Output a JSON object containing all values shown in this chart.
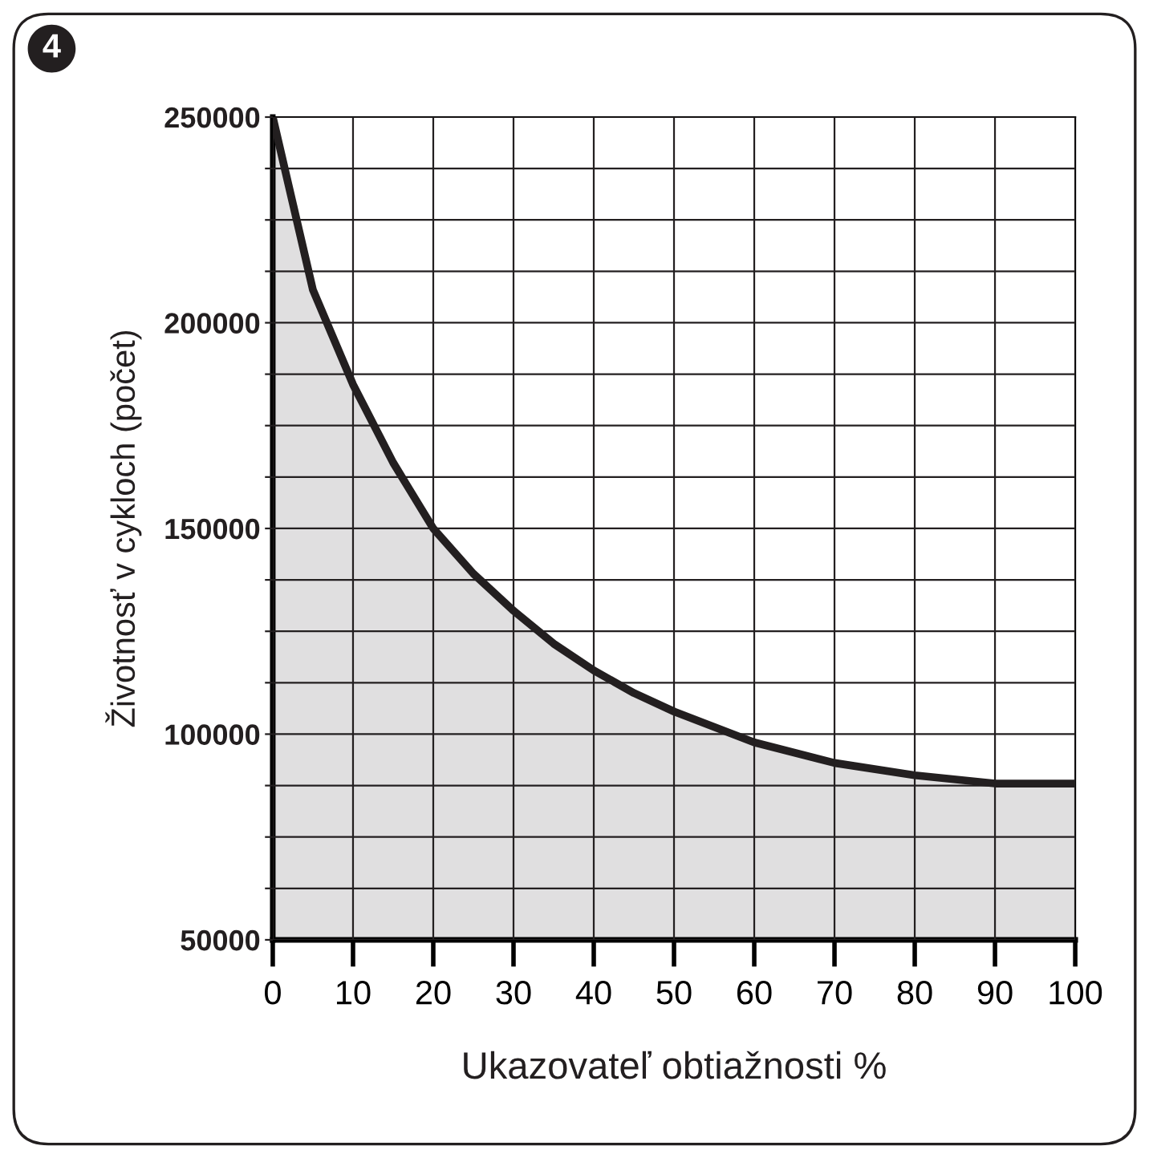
{
  "chart_data": {
    "type": "area",
    "xlabel": "Ukazovateľ obtiažnosti %",
    "ylabel": "Životnosť v cykloch (počet)",
    "annotations": [
      "4"
    ],
    "x": [
      0,
      5,
      10,
      15,
      20,
      25,
      30,
      35,
      40,
      45,
      50,
      60,
      70,
      80,
      90,
      100
    ],
    "series": [
      {
        "color": "#231f20",
        "values": [
          250000,
          208000,
          185000,
          166000,
          150000,
          139000,
          130000,
          122000,
          115500,
          110000,
          105500,
          98000,
          93000,
          90000,
          88000,
          88000
        ]
      }
    ],
    "xlim": [
      0,
      100
    ],
    "ylim": [
      50000,
      250000
    ],
    "xticks": [
      0,
      10,
      20,
      30,
      40,
      50,
      60,
      70,
      80,
      90,
      100
    ],
    "yticks": [
      50000,
      {
        "value": 62500,
        "label": null
      },
      {
        "value": 75000,
        "label": null
      },
      {
        "value": 87500,
        "label": null
      },
      100000,
      {
        "value": 112500,
        "label": null
      },
      {
        "value": 125000,
        "label": null
      },
      {
        "value": 137500,
        "label": null
      },
      150000,
      {
        "value": 162500,
        "label": null
      },
      {
        "value": 175000,
        "label": null
      },
      {
        "value": 187500,
        "label": null
      },
      200000,
      {
        "value": 212500,
        "label": null
      },
      {
        "value": 225000,
        "label": null
      },
      {
        "value": 237500,
        "label": null
      },
      250000
    ],
    "grid": true,
    "legend": false,
    "marker": "none",
    "line_style": "solid"
  }
}
